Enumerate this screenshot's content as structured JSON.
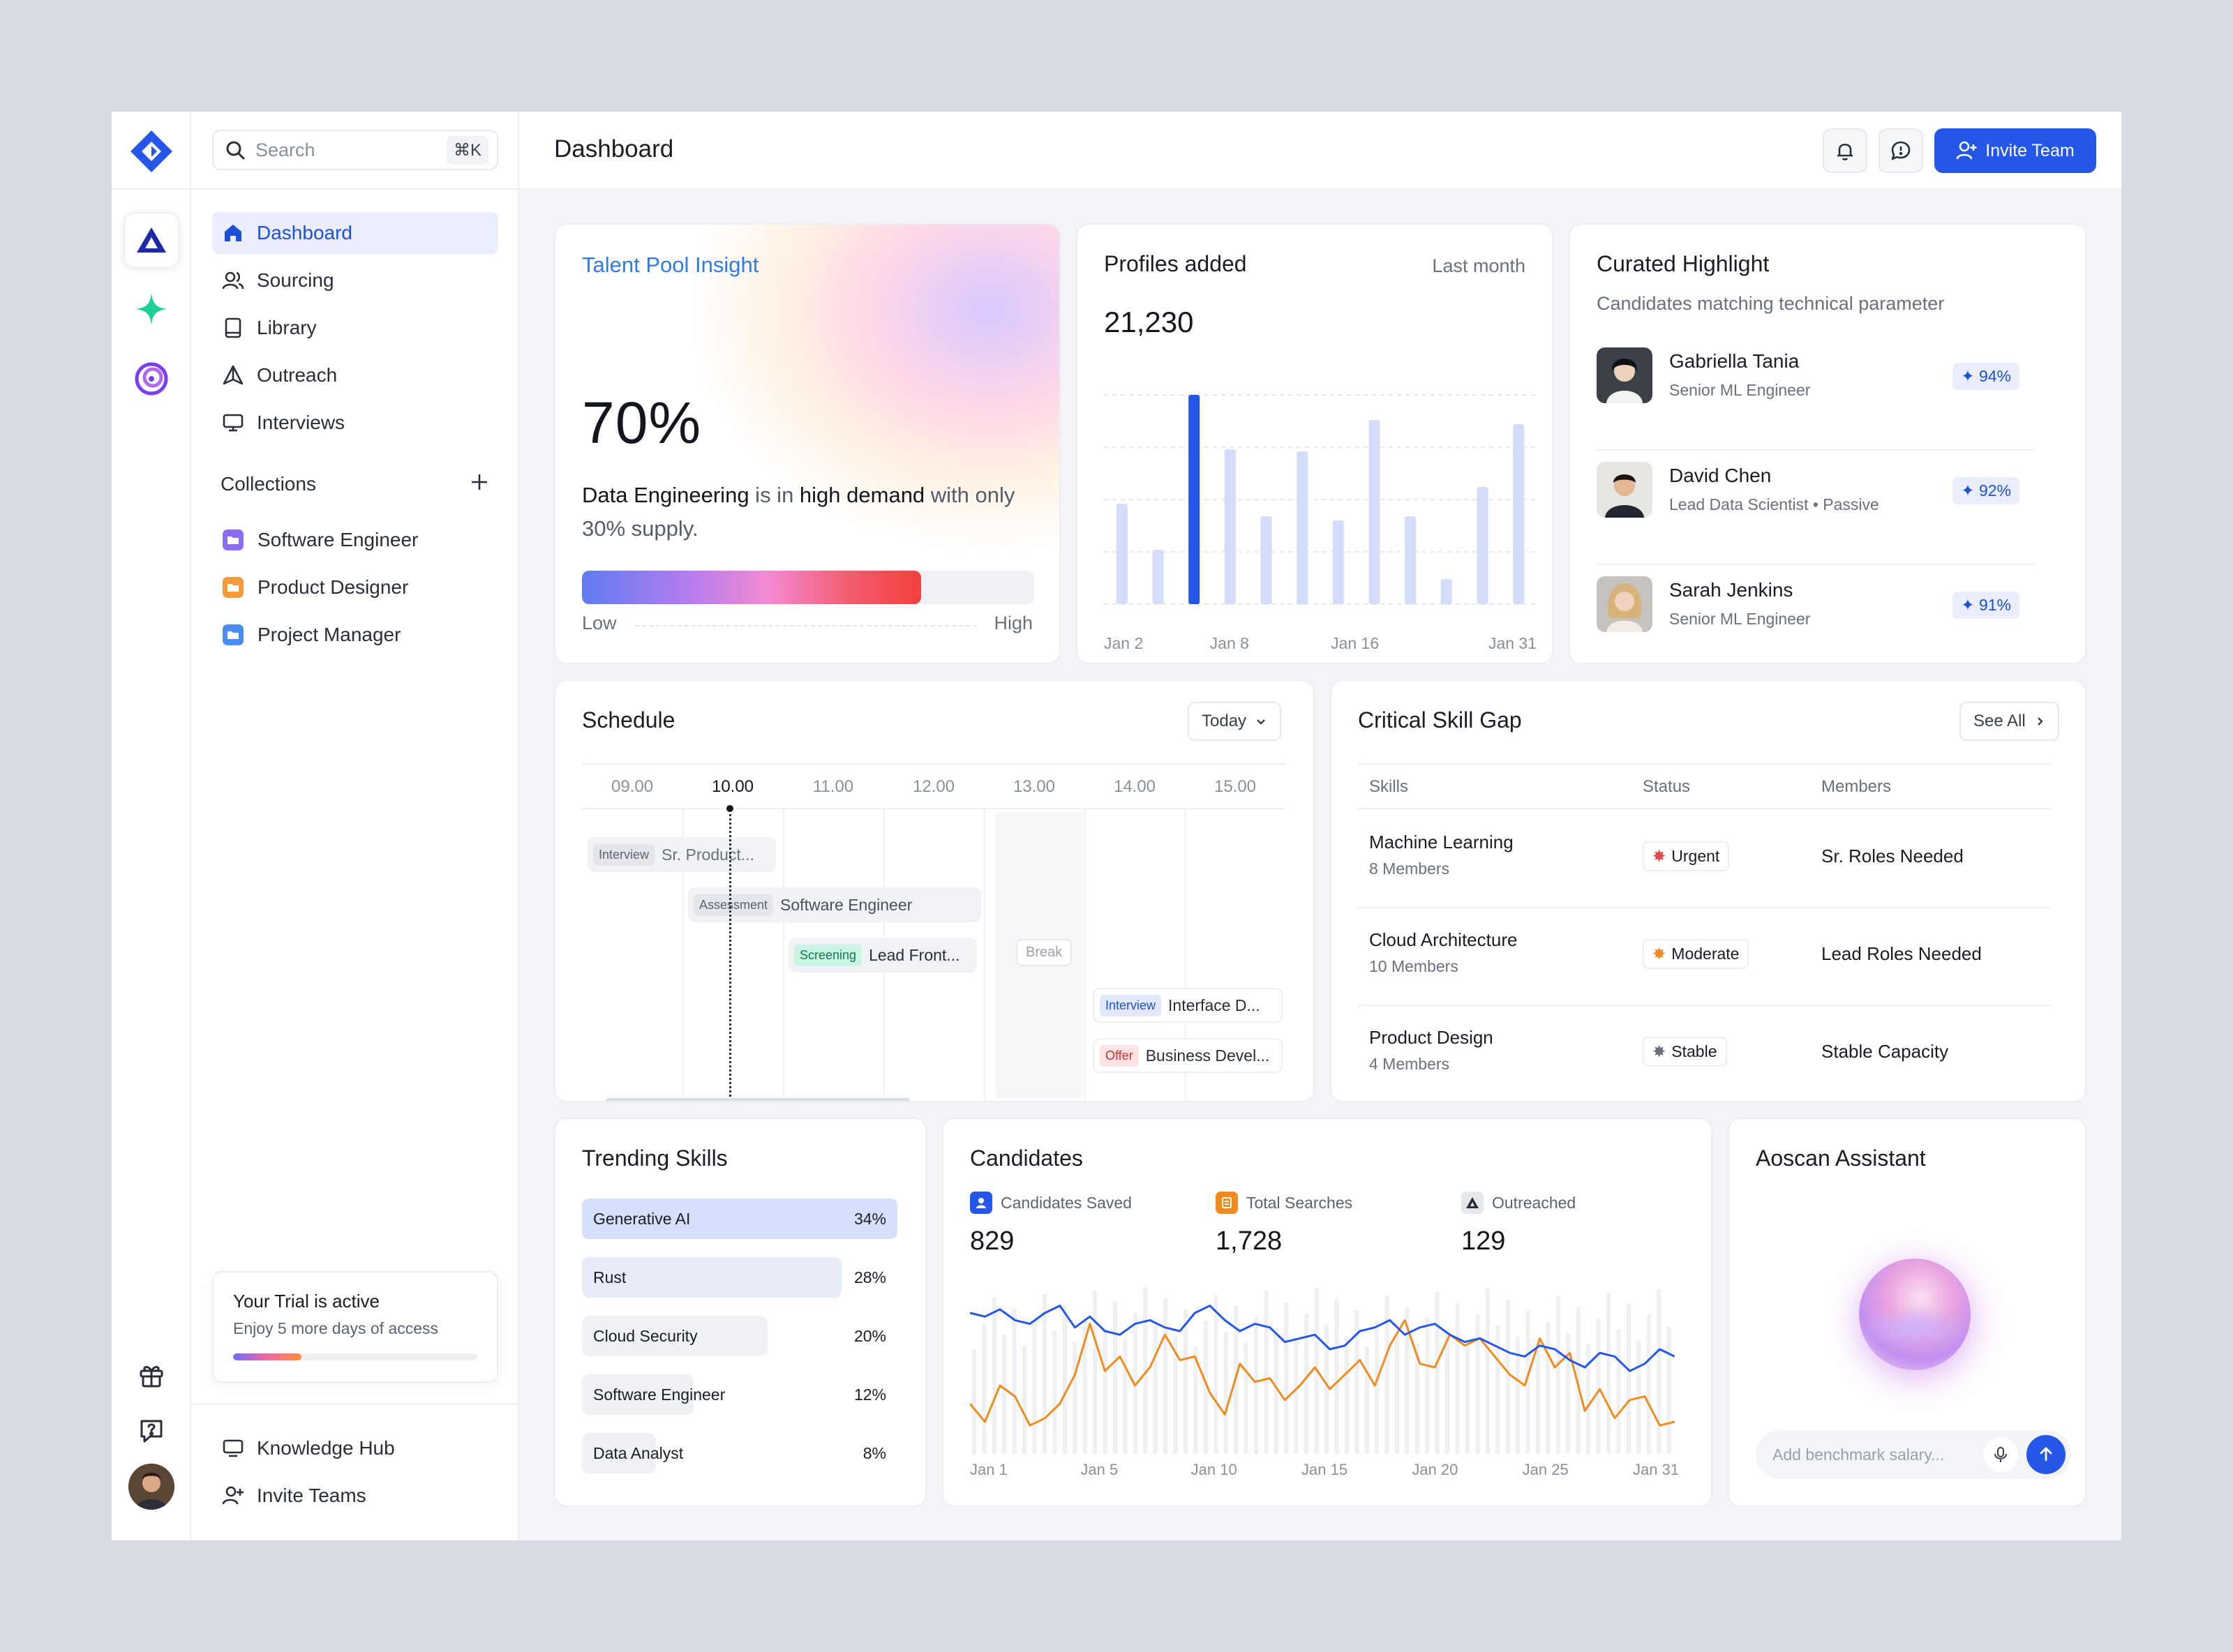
{
  "sidebar": {
    "search_placeholder": "Search",
    "search_shortcut": "⌘K",
    "nav": [
      {
        "label": "Dashboard"
      },
      {
        "label": "Sourcing"
      },
      {
        "label": "Library"
      },
      {
        "label": "Outreach"
      },
      {
        "label": "Interviews"
      }
    ],
    "collections_label": "Collections",
    "collections": [
      {
        "label": "Software Engineer",
        "color": "#8b6cf3"
      },
      {
        "label": "Product Designer",
        "color": "#f59a3a"
      },
      {
        "label": "Project Manager",
        "color": "#4a8df0"
      }
    ],
    "trial": {
      "title": "Your Trial is active",
      "subtitle": "Enjoy 5 more days of access",
      "progress": 0.28
    },
    "footer": [
      {
        "label": "Knowledge Hub"
      },
      {
        "label": "Invite Teams"
      }
    ]
  },
  "header": {
    "title": "Dashboard",
    "invite_label": "Invite Team"
  },
  "talent": {
    "title": "Talent Pool Insight",
    "value": "70%",
    "text_1": "Data Engineering",
    "text_2": " is in ",
    "text_3": "high demand",
    "text_4": " with only 30% supply.",
    "fill": 0.75,
    "low": "Low",
    "high": "High"
  },
  "profiles": {
    "title": "Profiles added",
    "period": "Last month",
    "value": "21,230",
    "bars": [
      48,
      26,
      100,
      74,
      42,
      73,
      40,
      88,
      42,
      12,
      56,
      86
    ],
    "highlight_index": 2,
    "x_labels": [
      "Jan 2",
      "Jan 8",
      "Jan 16",
      "Jan 31"
    ]
  },
  "curated": {
    "title": "Curated Highlight",
    "subtitle": "Candidates matching technical parameter",
    "people": [
      {
        "name": "Gabriella Tania",
        "role": "Senior ML Engineer",
        "score": "94%"
      },
      {
        "name": "David Chen",
        "role": "Lead Data Scientist • Passive",
        "score": "92%"
      },
      {
        "name": "Sarah Jenkins",
        "role": "Senior ML Engineer",
        "score": "91%"
      }
    ]
  },
  "schedule": {
    "title": "Schedule",
    "filter": "Today",
    "times": [
      "09.00",
      "10.00",
      "11.00",
      "12.00",
      "13.00",
      "14.00",
      "15.00"
    ],
    "current_time": "10.00",
    "break_label": "Break",
    "events": [
      {
        "tag": "Interview",
        "title": "Sr. Product..."
      },
      {
        "tag": "Assessment",
        "title": "Software Engineer"
      },
      {
        "tag": "Screening",
        "title": "Lead Front..."
      },
      {
        "tag": "Interview",
        "title": "Interface D..."
      },
      {
        "tag": "Offer",
        "title": "Business Devel..."
      }
    ]
  },
  "skillgap": {
    "title": "Critical Skill Gap",
    "see_all": "See All",
    "headers": [
      "Skills",
      "Status",
      "Members"
    ],
    "rows": [
      {
        "skill": "Machine Learning",
        "members": "8 Members",
        "status": "Urgent",
        "status_color": "#e5484d",
        "need": "Sr. Roles Needed"
      },
      {
        "skill": "Cloud Architecture",
        "members": "10 Members",
        "status": "Moderate",
        "status_color": "#f28b1e",
        "need": "Lead Roles Needed"
      },
      {
        "skill": "Product Design",
        "members": "4 Members",
        "status": "Stable",
        "status_color": "#6a707c",
        "need": "Stable Capacity"
      }
    ]
  },
  "trending": {
    "title": "Trending Skills",
    "items": [
      {
        "name": "Generative AI",
        "pct": "34%",
        "value": 34
      },
      {
        "name": "Rust",
        "pct": "28%",
        "value": 28
      },
      {
        "name": "Cloud Security",
        "pct": "20%",
        "value": 20
      },
      {
        "name": "Software Engineer",
        "pct": "12%",
        "value": 12
      },
      {
        "name": "Data Analyst",
        "pct": "8%",
        "value": 8
      }
    ]
  },
  "candidates": {
    "title": "Candidates",
    "stats": [
      {
        "label": "Candidates Saved",
        "value": "829",
        "color": "#2456e8"
      },
      {
        "label": "Total Searches",
        "value": "1,728",
        "color": "#f28b1e"
      },
      {
        "label": "Outreached",
        "value": "129",
        "color": "#e6e8ee"
      }
    ],
    "x_labels": [
      "Jan 1",
      "Jan 5",
      "Jan 10",
      "Jan 15",
      "Jan 20",
      "Jan 25",
      "Jan 31"
    ],
    "series_blue": [
      70,
      68,
      72,
      66,
      64,
      70,
      74,
      62,
      68,
      60,
      58,
      64,
      66,
      62,
      60,
      70,
      74,
      66,
      60,
      64,
      62,
      54,
      56,
      58,
      50,
      52,
      60,
      62,
      66,
      58,
      62,
      64,
      58,
      54,
      56,
      52,
      48,
      46,
      52,
      50,
      44,
      40,
      48,
      46,
      38,
      42,
      50,
      46
    ],
    "series_orange": [
      20,
      10,
      30,
      24,
      8,
      12,
      20,
      36,
      64,
      38,
      46,
      30,
      40,
      58,
      44,
      46,
      26,
      14,
      42,
      32,
      34,
      22,
      30,
      40,
      28,
      36,
      44,
      30,
      52,
      66,
      42,
      40,
      58,
      52,
      56,
      46,
      36,
      30,
      56,
      40,
      48,
      16,
      28,
      12,
      22,
      24,
      8,
      10
    ]
  },
  "assistant": {
    "title": "Aoscan Assistant",
    "placeholder": "Add benchmark salary..."
  }
}
